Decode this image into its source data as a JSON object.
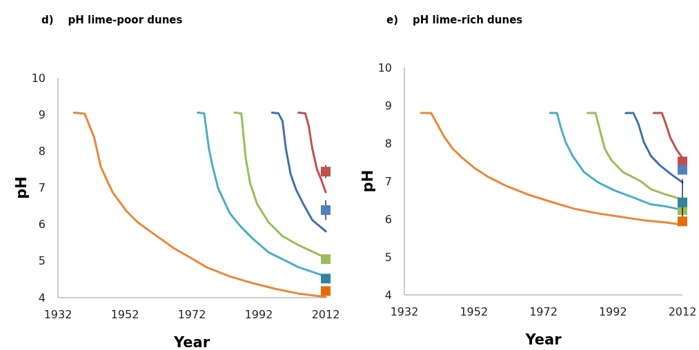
{
  "chart_data": [
    {
      "type": "line",
      "title": "d)    pH lime-poor dunes",
      "xlabel": "Year",
      "ylabel": "pH",
      "xlim": [
        1932,
        2012
      ],
      "ylim": [
        4,
        10
      ],
      "xticks": [
        1932,
        1952,
        1972,
        1992,
        2012
      ],
      "yticks": [
        4,
        5,
        6,
        7,
        8,
        9,
        10
      ],
      "grid": false,
      "series": [
        {
          "color": "#e8873a",
          "marker": "none",
          "x": [
            1936.8,
            1940,
            1942.8,
            1944.8,
            1948.3,
            1952.4,
            1955.8,
            1960,
            1966.8,
            1971.6,
            1976.4,
            1983.3,
            1990,
            1997,
            2003.9,
            2012
          ],
          "values": [
            9.05,
            9.02,
            8.38,
            7.57,
            6.88,
            6.37,
            6.06,
            5.78,
            5.34,
            5.09,
            4.83,
            4.58,
            4.4,
            4.24,
            4.11,
            4.02
          ]
        },
        {
          "type": "line",
          "color": "#4bacc6",
          "marker": "none",
          "x": [
            1973.8,
            1975.7,
            1977.1,
            1978.1,
            1979.8,
            1983.3,
            1986.7,
            1990.1,
            1994.9,
            2000.4,
            2003.9,
            2012
          ],
          "values": [
            9.05,
            9.03,
            8.07,
            7.63,
            7.0,
            6.31,
            5.93,
            5.62,
            5.24,
            4.99,
            4.83,
            4.58
          ]
        },
        {
          "type": "line",
          "color": "#9bbb59",
          "marker": "none",
          "x": [
            1984.8,
            1986.8,
            1988.1,
            1989.4,
            1991.5,
            1994.9,
            1999.1,
            2003.9,
            2012
          ],
          "values": [
            9.05,
            9.03,
            7.82,
            7.13,
            6.56,
            6.06,
            5.68,
            5.43,
            5.09
          ]
        },
        {
          "type": "line",
          "color": "#3f6fb0",
          "marker": "none",
          "x": [
            1996,
            1997.9,
            1999.1,
            2000.1,
            2001.5,
            2003.2,
            2005.3,
            2008,
            2012
          ],
          "values": [
            9.05,
            9.03,
            8.82,
            8.07,
            7.38,
            6.94,
            6.56,
            6.12,
            5.81
          ]
        },
        {
          "type": "line",
          "color": "#c0504d",
          "marker": "none",
          "x": [
            2003.9,
            2005.9,
            2006.9,
            2008,
            2009.4,
            2010.8,
            2012
          ],
          "values": [
            9.05,
            9.03,
            8.7,
            8.07,
            7.5,
            7.19,
            6.88
          ]
        },
        {
          "type": "scatter",
          "color": "#c0504d",
          "marker": "square",
          "x": [
            2012
          ],
          "values": [
            7.44
          ],
          "errors": [
            0.18
          ]
        },
        {
          "type": "scatter",
          "color": "#4f81bd",
          "marker": "square",
          "x": [
            2012
          ],
          "values": [
            6.39
          ],
          "errors": [
            0.27
          ]
        },
        {
          "type": "scatter",
          "color": "#9bbb59",
          "marker": "square",
          "x": [
            2012
          ],
          "values": [
            5.05
          ]
        },
        {
          "type": "scatter",
          "color": "#31859c",
          "marker": "square",
          "x": [
            2012
          ],
          "values": [
            4.52
          ]
        },
        {
          "type": "scatter",
          "color": "#e36c09",
          "marker": "square",
          "x": [
            2012
          ],
          "values": [
            4.18
          ]
        }
      ]
    },
    {
      "type": "line",
      "title": "e)    pH lime-rich dunes",
      "xlabel": "Year",
      "ylabel": "pH",
      "xlim": [
        1932,
        2012
      ],
      "ylim": [
        4,
        10
      ],
      "xticks": [
        1932,
        1952,
        1972,
        1992,
        2012
      ],
      "yticks": [
        4,
        5,
        6,
        7,
        8,
        9,
        10
      ],
      "grid": false,
      "series": [
        {
          "color": "#e8873a",
          "marker": "none",
          "x": [
            1936.8,
            1939.7,
            1941.4,
            1943.4,
            1946,
            1948.7,
            1952,
            1956,
            1961.2,
            1967.8,
            1974.4,
            1981,
            1987.7,
            1994.3,
            2000.9,
            2007.5,
            2012
          ],
          "values": [
            8.8,
            8.8,
            8.52,
            8.18,
            7.85,
            7.61,
            7.36,
            7.12,
            6.88,
            6.64,
            6.45,
            6.27,
            6.15,
            6.06,
            5.97,
            5.91,
            5.85
          ]
        },
        {
          "type": "line",
          "color": "#4bacc6",
          "marker": "none",
          "x": [
            1973.9,
            1975.9,
            1977.1,
            1978.4,
            1980.4,
            1983.7,
            1987.7,
            1992.3,
            1997.6,
            2002.9,
            2007.5,
            2012
          ],
          "values": [
            8.8,
            8.8,
            8.39,
            8.03,
            7.67,
            7.24,
            6.97,
            6.76,
            6.58,
            6.39,
            6.33,
            6.24
          ]
        },
        {
          "type": "line",
          "color": "#9bbb59",
          "marker": "none",
          "x": [
            1984.7,
            1987,
            1988.3,
            1989.7,
            1991.6,
            1994.9,
            2000,
            2002.9,
            2007.5,
            2012
          ],
          "values": [
            8.8,
            8.8,
            8.33,
            7.85,
            7.55,
            7.24,
            7.0,
            6.79,
            6.64,
            6.52
          ]
        },
        {
          "type": "line",
          "color": "#3f6fb0",
          "marker": "none",
          "x": [
            1995.7,
            1997.9,
            1999.3,
            2000.9,
            2002.9,
            2005.5,
            2008.8,
            2012
          ],
          "values": [
            8.8,
            8.8,
            8.52,
            8.03,
            7.67,
            7.42,
            7.18,
            6.97
          ]
        },
        {
          "type": "line",
          "color": "#c0504d",
          "marker": "none",
          "x": [
            2003.7,
            2006.1,
            2007.2,
            2008.5,
            2010.2,
            2012
          ],
          "values": [
            8.8,
            8.8,
            8.52,
            8.15,
            7.85,
            7.61
          ]
        },
        {
          "type": "scatter",
          "color": "#c0504d",
          "marker": "square",
          "x": [
            2012
          ],
          "values": [
            7.52
          ]
        },
        {
          "type": "scatter",
          "color": "#4f81bd",
          "marker": "square",
          "x": [
            2012
          ],
          "values": [
            7.3
          ]
        },
        {
          "type": "scatter",
          "color": "#9bbb59",
          "marker": "square",
          "x": [
            2012
          ],
          "values": [
            6.24
          ]
        },
        {
          "type": "scatter",
          "color": "#31859c",
          "marker": "square",
          "x": [
            2012
          ],
          "values": [
            6.44
          ],
          "errors": [
            0.62
          ]
        },
        {
          "type": "scatter",
          "color": "#e36c09",
          "marker": "square",
          "x": [
            2012
          ],
          "values": [
            5.94
          ]
        }
      ]
    }
  ]
}
